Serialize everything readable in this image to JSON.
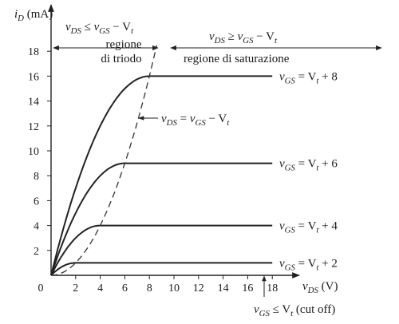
{
  "chart_data": {
    "type": "line",
    "ylabel": {
      "sym": "i",
      "sub": "D",
      "unit": " (mA)"
    },
    "xlabel": {
      "sym": "v",
      "sub": "DS",
      "unit": " (V)"
    },
    "xlim": [
      0,
      18
    ],
    "ylim": [
      0,
      19
    ],
    "x_ticks": [
      0,
      2,
      4,
      6,
      8,
      10,
      12,
      14,
      16,
      18
    ],
    "y_ticks": [
      2,
      4,
      6,
      8,
      10,
      12,
      14,
      16,
      18
    ],
    "grid": false,
    "series": [
      {
        "name": "vGS = Vt + 8",
        "vov": 8,
        "points": [
          [
            0,
            0
          ],
          [
            2,
            6.0
          ],
          [
            4,
            11.0
          ],
          [
            6,
            14.5
          ],
          [
            8,
            16.0
          ],
          [
            18,
            16.0
          ]
        ]
      },
      {
        "name": "vGS = Vt + 6",
        "vov": 6,
        "points": [
          [
            0,
            0
          ],
          [
            2,
            5.0
          ],
          [
            4,
            8.0
          ],
          [
            6,
            9.0
          ],
          [
            18,
            9.0
          ]
        ]
      },
      {
        "name": "vGS = Vt + 4",
        "vov": 4,
        "points": [
          [
            0,
            0
          ],
          [
            1,
            2.0
          ],
          [
            2,
            3.0
          ],
          [
            3,
            3.8
          ],
          [
            4,
            4.0
          ],
          [
            18,
            4.0
          ]
        ]
      },
      {
        "name": "vGS = Vt + 2",
        "vov": 2,
        "points": [
          [
            0,
            0
          ],
          [
            1,
            0.75
          ],
          [
            2,
            1.0
          ],
          [
            18,
            1.0
          ]
        ]
      }
    ],
    "boundary": {
      "points": [
        [
          0,
          0
        ],
        [
          2,
          1.0
        ],
        [
          4,
          4.0
        ],
        [
          6,
          9.0
        ],
        [
          8,
          16.0
        ],
        [
          8.4,
          17.6
        ],
        [
          8.6,
          19
        ]
      ]
    },
    "labels": {
      "triode_condition": {
        "a": "v",
        "a_sub": "DS",
        "op": " ≤ ",
        "b": "v",
        "b_sub": "GS",
        "rest": " − V",
        "rest_sub": "t"
      },
      "triode_region": [
        "regione",
        "di triodo"
      ],
      "sat_condition": {
        "a": "v",
        "a_sub": "DS",
        "op": " ≥ ",
        "b": "v",
        "b_sub": "GS",
        "rest": " − V",
        "rest_sub": "t"
      },
      "sat_region": "regione di saturazione",
      "boundary_eq": {
        "a": "v",
        "a_sub": "DS",
        "op": " = ",
        "b": "v",
        "b_sub": "GS",
        "rest": " − V",
        "rest_sub": "t"
      },
      "curve_labels": [
        {
          "v": "v",
          "sub": "GS",
          "eq": " = V",
          "t": "t",
          "tail": " + 8"
        },
        {
          "v": "v",
          "sub": "GS",
          "eq": " = V",
          "t": "t",
          "tail": " + 6"
        },
        {
          "v": "v",
          "sub": "GS",
          "eq": " = V",
          "t": "t",
          "tail": " + 4"
        },
        {
          "v": "v",
          "sub": "GS",
          "eq": " = V",
          "t": "t",
          "tail": " + 2"
        }
      ],
      "cutoff": {
        "v": "v",
        "sub": "GS",
        "op": " ≤ V",
        "t": "t",
        "tail": " (cut off)"
      }
    }
  }
}
